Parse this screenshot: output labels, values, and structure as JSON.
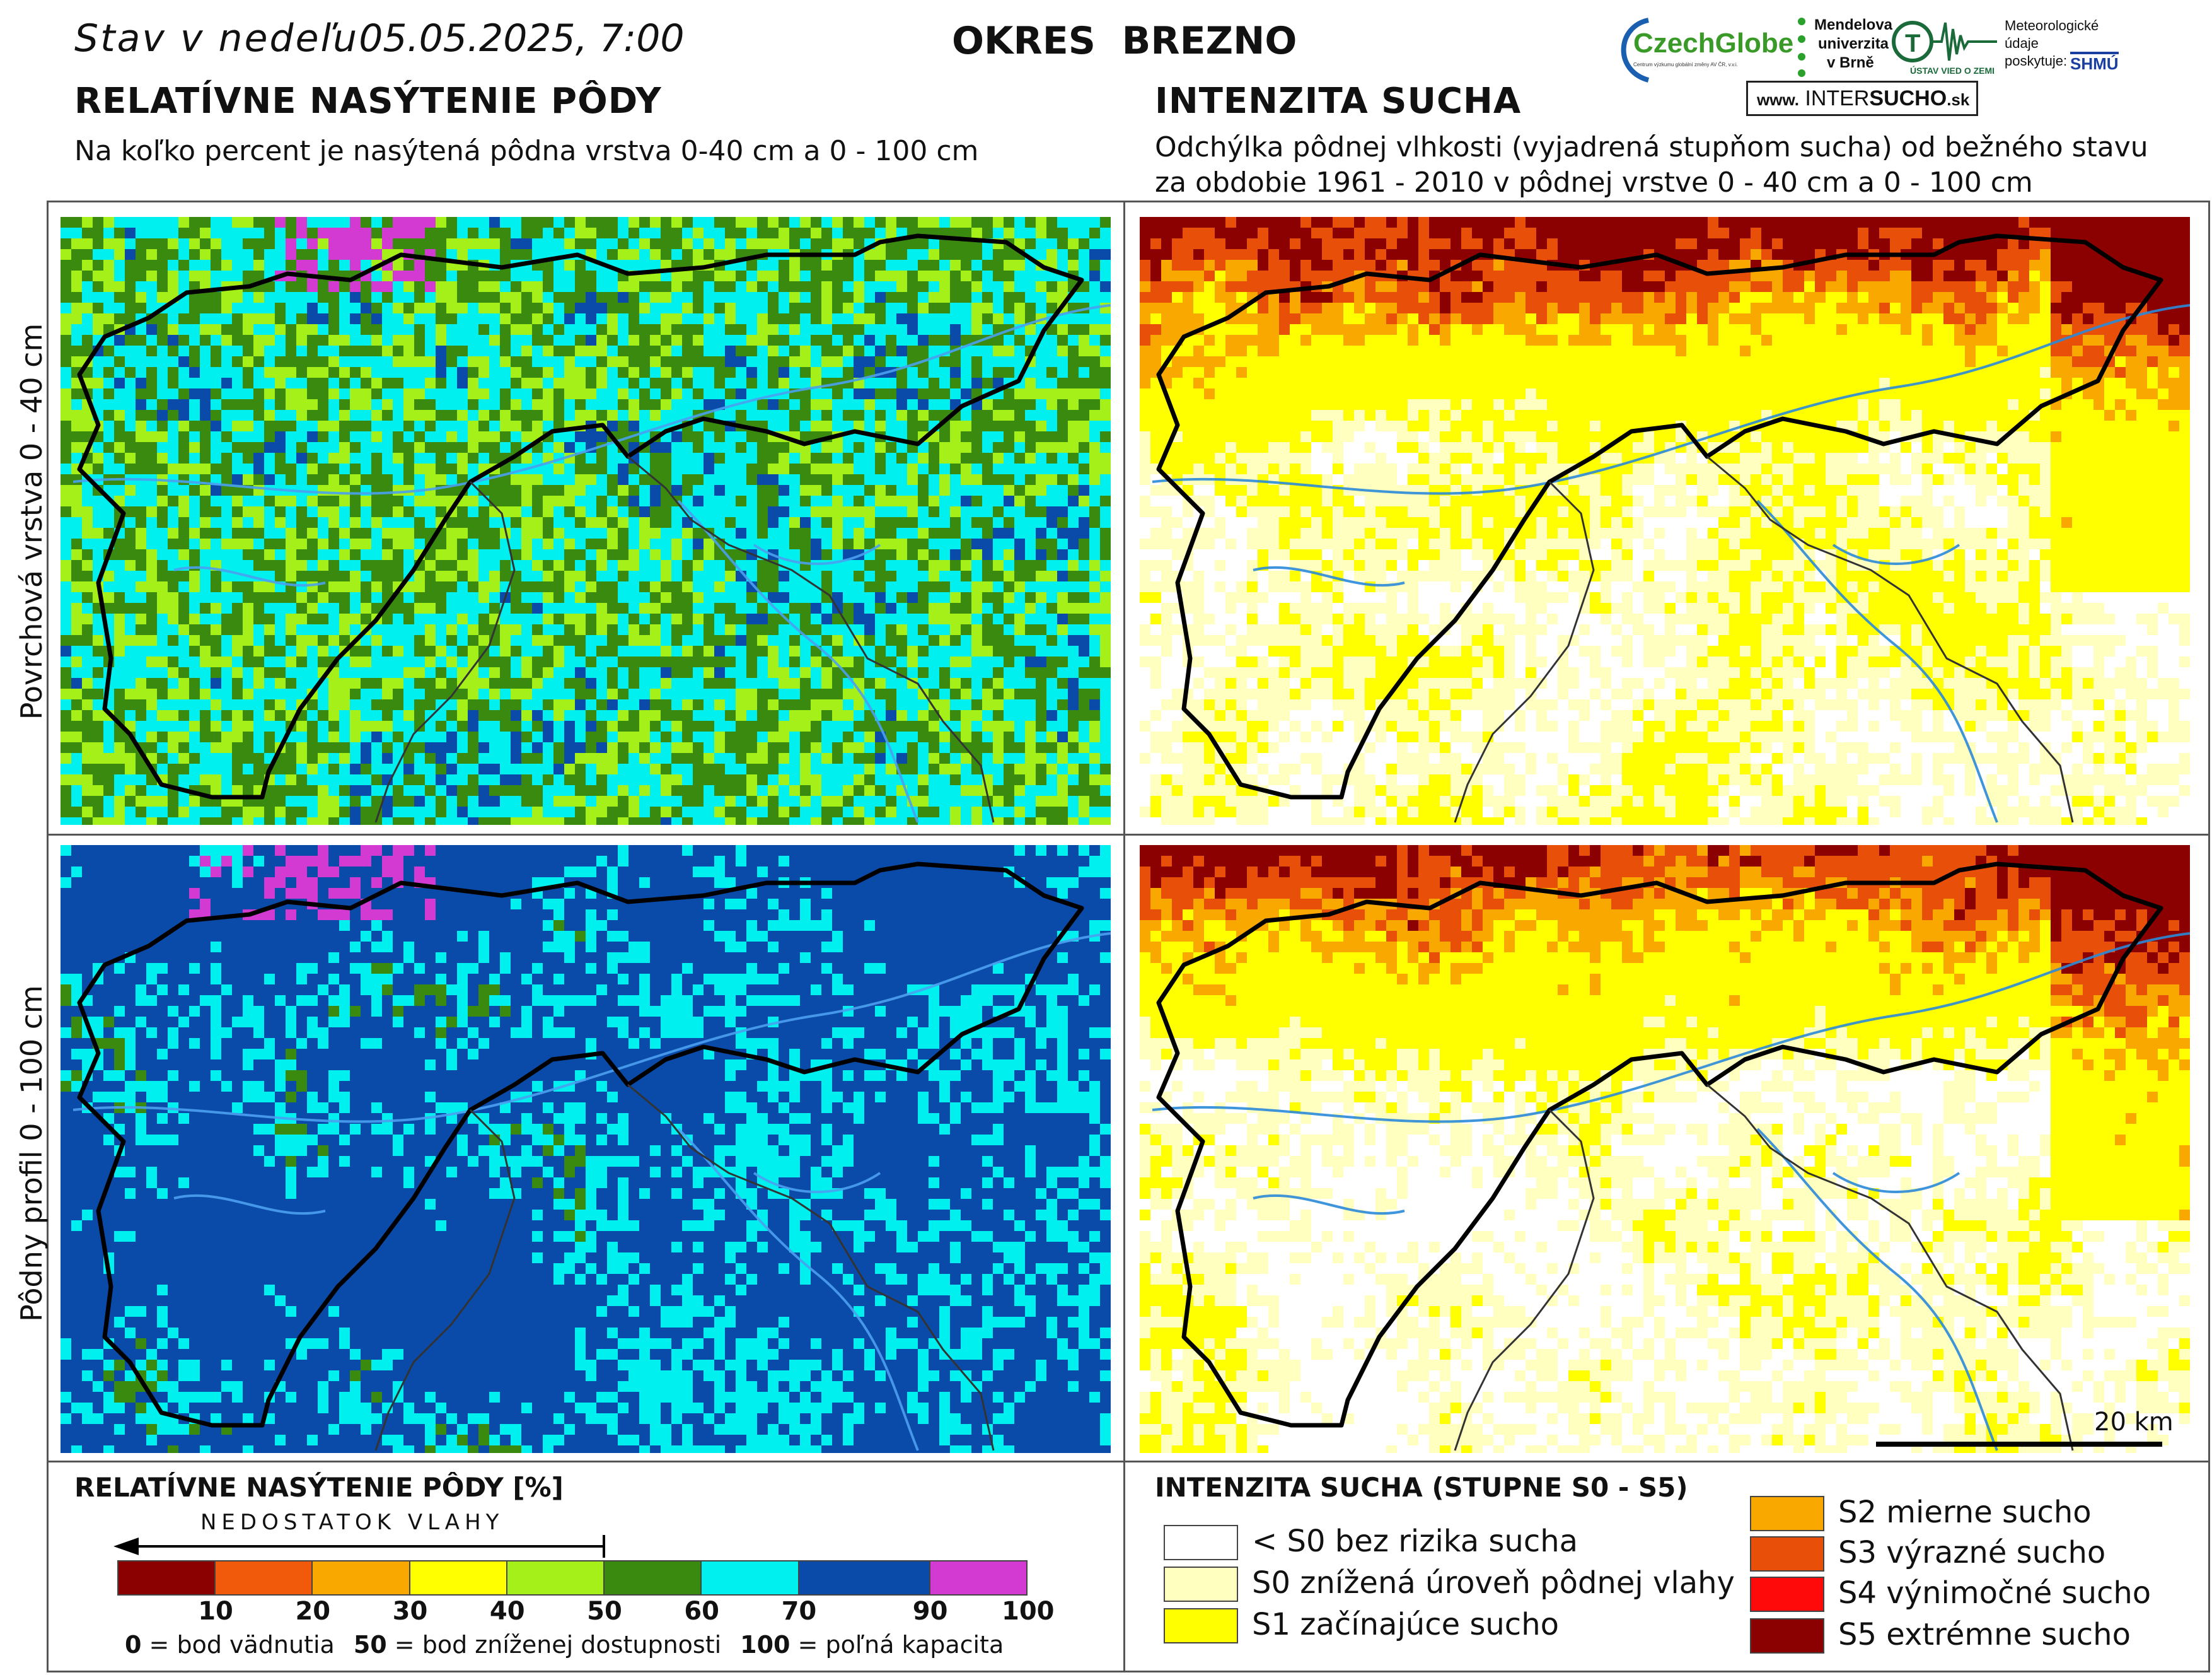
{
  "header": {
    "status_prefix": "Stav v nedeľu",
    "status_datetime": "05.05.2025, 7:00",
    "district": "OKRES  BREZNO"
  },
  "left_panel": {
    "title": "RELATÍVNE NASÝTENIE PÔDY",
    "subtitle": "Na koľko percent je nasýtená pôdna vrstva 0-40 cm a 0 - 100 cm"
  },
  "right_panel": {
    "title": "INTENZITA SUCHA",
    "subtitle_line1": "Odchýlka pôdnej vlhkosti (vyjadrená stupňom sucha) od bežného stavu",
    "subtitle_line2": "za obdobie 1961 - 2010 v pôdnej vrstve 0 - 40 cm a 0 - 100 cm"
  },
  "row_labels": {
    "top": "Povrchová vrstva 0 - 40 cm",
    "bottom": "Pôdny profil 0 - 100 cm"
  },
  "scale_bar": {
    "label": "20 km"
  },
  "logos": {
    "czechglobe": "CzechGlobe",
    "czechglobe_small": "Centrum výzkumu globální změny AV ČR, v.v.i.",
    "mendelu_1": "Mendelova",
    "mendelu_2": "univerzita",
    "mendelu_3": "v Brně",
    "uvgz": "ÚSTAV VIED O ZEMI",
    "meteo_1": "Meteorologické",
    "meteo_2": "údaje",
    "meteo_3": "poskytuje:",
    "shmu": "SHMÚ",
    "intersucho_prefix": "www.",
    "intersucho_inter": "INTER",
    "intersucho_sucho": "SUCHO",
    "intersucho_suffix": ".sk"
  },
  "legend_left": {
    "title": "RELATÍVNE NASÝTENIE PÔDY [%]",
    "arrow_label": "NEDOSTATOK VLAHY",
    "bins": [
      {
        "color": "#8b0000"
      },
      {
        "color": "#f05a0a"
      },
      {
        "color": "#f9a800"
      },
      {
        "color": "#ffff00"
      },
      {
        "color": "#a6f01a"
      },
      {
        "color": "#3a8a10"
      },
      {
        "color": "#00f0f0"
      },
      {
        "color": "#0a4aa8"
      },
      {
        "color": "#d23ad2"
      }
    ],
    "ticks": [
      "10",
      "20",
      "30",
      "40",
      "50",
      "60",
      "70",
      "90",
      "100"
    ],
    "note_0_num": "0",
    "note_0_text": " = bod vädnutia",
    "note_50_num": "50",
    "note_50_text": " = bod zníženej dostupnosti",
    "note_100_num": "100",
    "note_100_text": " = poľná kapacita"
  },
  "legend_right": {
    "title": "INTENZITA SUCHA (STUPNE S0 - S5)",
    "items": [
      {
        "label": "< S0 bez rizika sucha",
        "color": "#ffffff"
      },
      {
        "label": "S0 znížená úroveň pôdnej vlahy",
        "color": "#ffffc0"
      },
      {
        "label": "S1 začínajúce sucho",
        "color": "#ffff00"
      },
      {
        "label": "S2 mierne sucho",
        "color": "#f9a800"
      },
      {
        "label": "S3 výrazné sucho",
        "color": "#e8500a"
      },
      {
        "label": "S4 výnimočné sucho",
        "color": "#ff0a0a"
      },
      {
        "label": "S5 extrémne sucho",
        "color": "#8b0000"
      }
    ]
  }
}
